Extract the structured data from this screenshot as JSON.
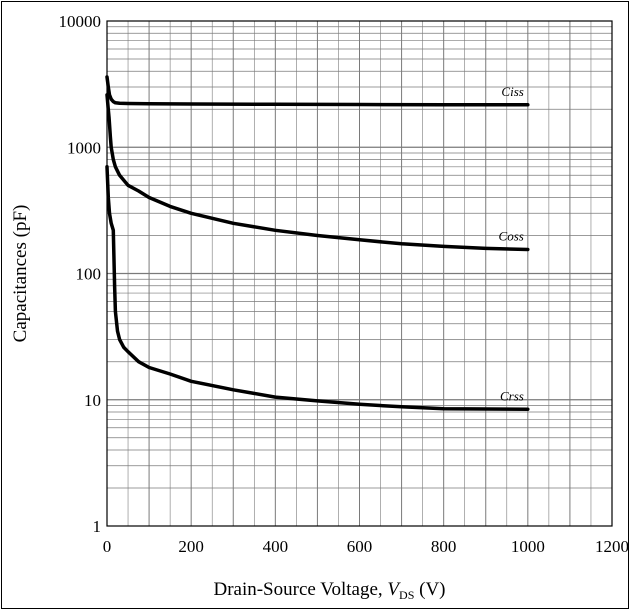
{
  "chart_data": {
    "type": "line",
    "title": "",
    "xlabel": {
      "prefix": "Drain-Source Voltage, ",
      "symbol": "V",
      "subscript": "DS",
      "suffix": " (V)"
    },
    "ylabel": "Capacitances (pF)",
    "xscale": "linear",
    "yscale": "log",
    "xlim": [
      0,
      1200
    ],
    "ylim": [
      1,
      10000
    ],
    "xticks": [
      "0",
      "200",
      "400",
      "600",
      "800",
      "1000",
      "1200"
    ],
    "yticks": [
      "1",
      "10",
      "100",
      "1000",
      "10000"
    ],
    "grid": true,
    "colors": {
      "line": "#000000",
      "grid": "#7a7a7a",
      "background": "#ffffff"
    },
    "series": [
      {
        "name": "Ciss",
        "x": [
          0,
          3,
          6,
          10,
          15,
          20,
          30,
          50,
          100,
          200,
          400,
          600,
          800,
          1000
        ],
        "y": [
          3600,
          3000,
          2600,
          2400,
          2300,
          2250,
          2230,
          2220,
          2210,
          2200,
          2190,
          2180,
          2170,
          2170
        ]
      },
      {
        "name": "Coss",
        "x": [
          0,
          2,
          5,
          8,
          10,
          15,
          20,
          30,
          50,
          75,
          100,
          150,
          200,
          300,
          400,
          500,
          600,
          700,
          800,
          900,
          1000
        ],
        "y": [
          2600,
          2200,
          1700,
          1200,
          1000,
          800,
          700,
          600,
          500,
          450,
          400,
          340,
          300,
          250,
          220,
          200,
          185,
          172,
          164,
          158,
          155
        ]
      },
      {
        "name": "Crss",
        "x": [
          0,
          3,
          6,
          10,
          15,
          18,
          20,
          25,
          30,
          40,
          50,
          75,
          100,
          150,
          200,
          300,
          400,
          500,
          600,
          700,
          800,
          1000
        ],
        "y": [
          700,
          400,
          300,
          250,
          220,
          80,
          50,
          35,
          30,
          26,
          24,
          20,
          18,
          16,
          14,
          12,
          10.5,
          9.8,
          9.2,
          8.8,
          8.5,
          8.4
        ]
      }
    ]
  }
}
